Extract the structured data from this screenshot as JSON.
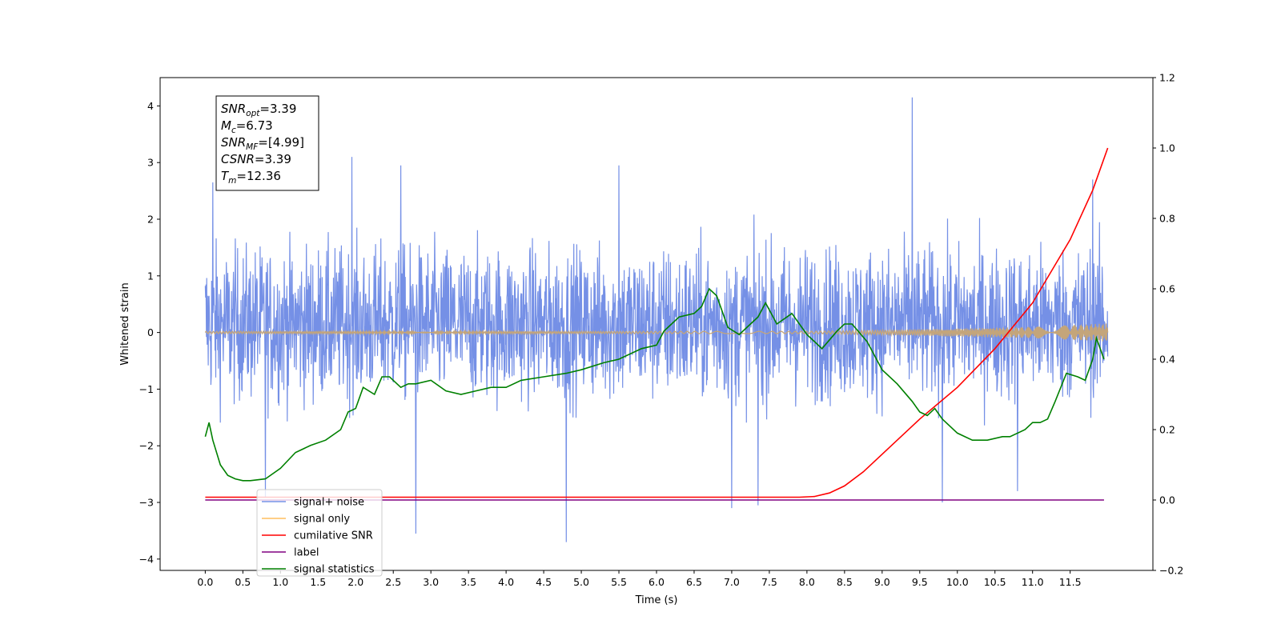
{
  "chart_data": {
    "type": "line",
    "xlabel": "Time (s)",
    "ylabel": "Whitened strain",
    "xlim": [
      -0.6,
      12.6
    ],
    "ylim": [
      -4.2,
      4.5
    ],
    "y2lim": [
      -0.2,
      1.2
    ],
    "x_ticks": [
      0.0,
      0.5,
      1.0,
      1.5,
      2.0,
      2.5,
      3.0,
      3.5,
      4.0,
      4.5,
      5.0,
      5.5,
      6.0,
      6.5,
      7.0,
      7.5,
      8.0,
      8.5,
      9.0,
      9.5,
      10.0,
      10.5,
      11.0,
      11.5
    ],
    "x_tick_labels": [
      "0.0",
      "0.5",
      "1.0",
      "1.5",
      "2.0",
      "2.5",
      "3.0",
      "3.5",
      "4.0",
      "4.5",
      "5.0",
      "5.5",
      "6.0",
      "6.5",
      "7.0",
      "7.5",
      "8.0",
      "8.5",
      "9.0",
      "9.5",
      "10.0",
      "10.5",
      "11.0",
      "11.5"
    ],
    "y_ticks": [
      -4,
      -3,
      -2,
      -1,
      0,
      1,
      2,
      3,
      4
    ],
    "y_tick_labels": [
      "−4",
      "−3",
      "−2",
      "−1",
      "0",
      "1",
      "2",
      "3",
      "4"
    ],
    "y2_ticks": [
      -0.2,
      0.0,
      0.2,
      0.4,
      0.6,
      0.8,
      1.0,
      1.2
    ],
    "y2_tick_labels": [
      "−0.2",
      "0.0",
      "0.2",
      "0.4",
      "0.6",
      "0.8",
      "1.0",
      "1.2"
    ],
    "grid": false,
    "legend_position": "bottom-left",
    "info_box": {
      "lines": [
        {
          "base": "SNR",
          "sub": "opt",
          "value": "=3.39"
        },
        {
          "base": "M",
          "sub": "c",
          "value": "=6.73"
        },
        {
          "base": "SNR",
          "sub": "MF",
          "value": "=[4.99]"
        },
        {
          "base": "CSNR",
          "sub": "",
          "value": "=3.39"
        },
        {
          "base": "T",
          "sub": "m",
          "value": "=12.36"
        }
      ]
    },
    "series": [
      {
        "name": "signal+ noise",
        "color": "#7590e6",
        "axis": "left",
        "duration": 12.0,
        "noise_band": [
          -1.8,
          2.4
        ],
        "peaks": [
          [
            0.1,
            2.65
          ],
          [
            1.95,
            3.1
          ],
          [
            2.6,
            2.95
          ],
          [
            5.5,
            2.95
          ],
          [
            9.4,
            4.15
          ],
          [
            11.8,
            2.7
          ],
          [
            0.8,
            -2.9
          ],
          [
            2.8,
            -3.55
          ],
          [
            4.8,
            -3.7
          ],
          [
            7.0,
            -3.1
          ],
          [
            7.35,
            -3.05
          ],
          [
            9.8,
            -3.0
          ],
          [
            10.8,
            -2.8
          ]
        ]
      },
      {
        "name": "signal only",
        "color": "#c4a57a",
        "axis": "left",
        "x": [
          0.0,
          8.0,
          9.0,
          10.0,
          11.0,
          12.0
        ],
        "amplitude": [
          0.02,
          0.02,
          0.04,
          0.07,
          0.1,
          0.16
        ]
      },
      {
        "name": "cumilative SNR",
        "color": "#ff0000",
        "axis": "right",
        "x": [
          0.0,
          7.9,
          8.1,
          8.3,
          8.5,
          8.75,
          9.0,
          9.5,
          10.0,
          10.5,
          11.0,
          11.5,
          11.8,
          12.0
        ],
        "y": [
          0.008,
          0.008,
          0.01,
          0.02,
          0.04,
          0.08,
          0.13,
          0.23,
          0.32,
          0.43,
          0.56,
          0.74,
          0.88,
          1.0
        ]
      },
      {
        "name": "label",
        "color": "#800080",
        "axis": "right",
        "x": [
          0.0,
          11.95
        ],
        "y": [
          0.0,
          0.0
        ]
      },
      {
        "name": "signal statistics",
        "color": "#008000",
        "axis": "right",
        "x": [
          0.0,
          0.05,
          0.1,
          0.2,
          0.3,
          0.4,
          0.5,
          0.6,
          0.8,
          1.0,
          1.2,
          1.4,
          1.6,
          1.8,
          1.9,
          2.0,
          2.1,
          2.25,
          2.35,
          2.45,
          2.5,
          2.6,
          2.7,
          2.8,
          3.0,
          3.2,
          3.4,
          3.6,
          3.8,
          4.0,
          4.2,
          4.5,
          4.8,
          5.0,
          5.3,
          5.5,
          5.8,
          6.0,
          6.1,
          6.2,
          6.3,
          6.5,
          6.6,
          6.7,
          6.8,
          6.95,
          7.1,
          7.25,
          7.35,
          7.45,
          7.6,
          7.8,
          8.0,
          8.2,
          8.4,
          8.5,
          8.6,
          8.8,
          9.0,
          9.2,
          9.4,
          9.5,
          9.6,
          9.7,
          9.8,
          10.0,
          10.2,
          10.4,
          10.6,
          10.7,
          10.9,
          11.0,
          11.1,
          11.2,
          11.3,
          11.45,
          11.6,
          11.7,
          11.8,
          11.85,
          11.95
        ],
        "y": [
          0.18,
          0.22,
          0.17,
          0.1,
          0.07,
          0.06,
          0.055,
          0.055,
          0.06,
          0.09,
          0.135,
          0.155,
          0.17,
          0.2,
          0.25,
          0.26,
          0.32,
          0.3,
          0.35,
          0.35,
          0.34,
          0.32,
          0.33,
          0.33,
          0.34,
          0.31,
          0.3,
          0.31,
          0.32,
          0.32,
          0.34,
          0.35,
          0.36,
          0.37,
          0.39,
          0.4,
          0.43,
          0.44,
          0.48,
          0.5,
          0.52,
          0.53,
          0.55,
          0.6,
          0.58,
          0.49,
          0.47,
          0.5,
          0.52,
          0.56,
          0.5,
          0.53,
          0.47,
          0.43,
          0.48,
          0.5,
          0.5,
          0.45,
          0.37,
          0.33,
          0.28,
          0.25,
          0.24,
          0.26,
          0.23,
          0.19,
          0.17,
          0.17,
          0.18,
          0.18,
          0.2,
          0.22,
          0.22,
          0.23,
          0.28,
          0.36,
          0.35,
          0.34,
          0.4,
          0.46,
          0.4
        ]
      }
    ]
  }
}
